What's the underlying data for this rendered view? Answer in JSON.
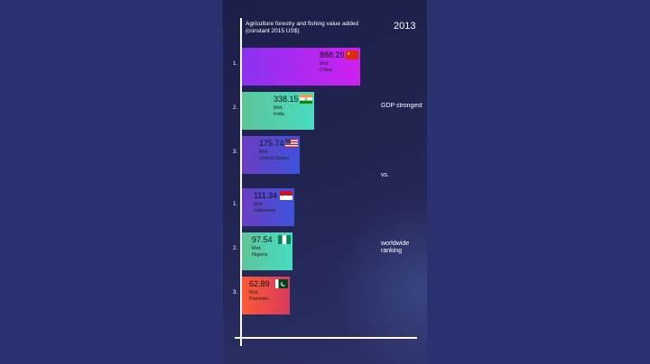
{
  "chart_data": {
    "type": "bar",
    "orientation": "horizontal",
    "title": "Agriculture  forestry  and fishing value added (constant 2015 US$)",
    "year": "2013",
    "unit": "Mrd.",
    "side_labels": [
      "GDP strongest",
      "vs.",
      "worldwide ranking"
    ],
    "groups": [
      {
        "items": [
          {
            "rank": "1.",
            "country": "China",
            "value": 888.29,
            "value_label": "888.29",
            "colors": [
              "#8a32f0",
              "#d020f0"
            ],
            "flag": "china-flag-icon"
          },
          {
            "rank": "2.",
            "country": "India",
            "value": 338.15,
            "value_label": "338.15",
            "colors": [
              "#5ec49a",
              "#48dcc0"
            ],
            "flag": "india-flag-icon"
          },
          {
            "rank": "3.",
            "country": "United States",
            "value": 175.74,
            "value_label": "175.74",
            "colors": [
              "#6a3ec2",
              "#3f52dc"
            ],
            "flag": "usa-flag-icon"
          }
        ]
      },
      {
        "items": [
          {
            "rank": "1.",
            "country": "Indonesia",
            "value": 111.34,
            "value_label": "111.34",
            "colors": [
              "#6a3ec2",
              "#3f52dc"
            ],
            "flag": "indonesia-flag-icon"
          },
          {
            "rank": "2.",
            "country": "Nigeria",
            "value": 97.54,
            "value_label": "97.54",
            "colors": [
              "#5ec49a",
              "#48dcc0"
            ],
            "flag": "nigeria-flag-icon"
          },
          {
            "rank": "3.",
            "country": "Pakistan",
            "value": 62.89,
            "value_label": "62.89",
            "colors": [
              "#ff5a36",
              "#d83a5a"
            ],
            "flag": "pakistan-flag-icon"
          }
        ]
      }
    ]
  }
}
